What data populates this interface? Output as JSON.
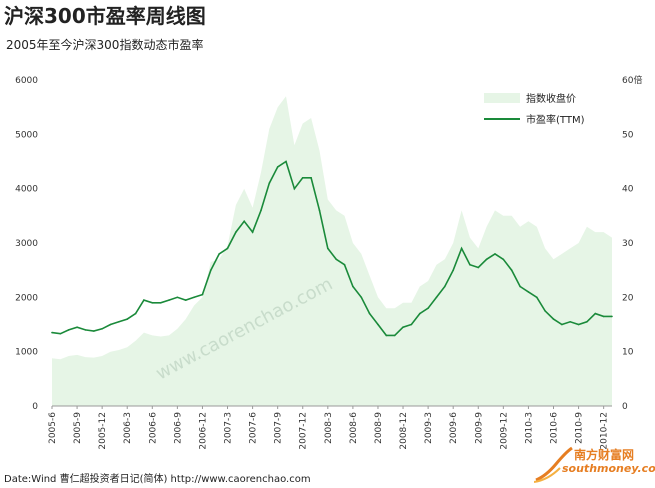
{
  "header": {
    "title": "沪深300市盈率周线图",
    "subtitle": "2005年至今沪深300指数动态市盈率"
  },
  "footer": {
    "source": "Date:Wind  曹仁超投资者日记(简体) http://www.caorenchao.com"
  },
  "watermark": "www.caorenchao.com",
  "logo": {
    "cn": "南方财富网",
    "url": "southmoney.com"
  },
  "colors": {
    "area_fill": "#e6f5e6",
    "pe_line": "#1a8a3a",
    "logo": "#e67e22"
  },
  "chart_data": {
    "type": "area",
    "x": [
      "2005-6",
      "2005-7",
      "2005-8",
      "2005-9",
      "2005-10",
      "2005-11",
      "2005-12",
      "2006-1",
      "2006-2",
      "2006-3",
      "2006-4",
      "2006-5",
      "2006-6",
      "2006-7",
      "2006-8",
      "2006-9",
      "2006-10",
      "2006-11",
      "2006-12",
      "2007-1",
      "2007-2",
      "2007-3",
      "2007-4",
      "2007-5",
      "2007-6",
      "2007-7",
      "2007-8",
      "2007-9",
      "2007-10",
      "2007-11",
      "2007-12",
      "2008-1",
      "2008-2",
      "2008-3",
      "2008-4",
      "2008-5",
      "2008-6",
      "2008-7",
      "2008-8",
      "2008-9",
      "2008-10",
      "2008-11",
      "2008-12",
      "2009-1",
      "2009-2",
      "2009-3",
      "2009-4",
      "2009-5",
      "2009-6",
      "2009-7",
      "2009-8",
      "2009-9",
      "2009-10",
      "2009-11",
      "2009-12",
      "2010-1",
      "2010-2",
      "2010-3",
      "2010-4",
      "2010-5",
      "2010-6",
      "2010-7",
      "2010-8",
      "2010-9",
      "2010-10",
      "2010-11",
      "2010-12",
      "2011-1"
    ],
    "x_tick_labels": [
      "2005-6",
      "2005-9",
      "2005-12",
      "2006-3",
      "2006-6",
      "2006-9",
      "2006-12",
      "2007-3",
      "2007-6",
      "2007-9",
      "2007-12",
      "2008-3",
      "2008-6",
      "2008-9",
      "2008-12",
      "2009-3",
      "2009-6",
      "2009-9",
      "2009-12",
      "2010-3",
      "2010-6",
      "2010-9",
      "2010-12"
    ],
    "series": [
      {
        "name": "指数收盘价",
        "axis": "left",
        "values": [
          880,
          860,
          920,
          940,
          900,
          890,
          920,
          1000,
          1030,
          1080,
          1200,
          1350,
          1300,
          1280,
          1300,
          1420,
          1600,
          1850,
          2000,
          2650,
          2700,
          2950,
          3700,
          4000,
          3650,
          4300,
          5100,
          5500,
          5700,
          4800,
          5200,
          5300,
          4700,
          3800,
          3600,
          3500,
          3000,
          2800,
          2400,
          2000,
          1800,
          1800,
          1900,
          1900,
          2200,
          2300,
          2600,
          2700,
          3000,
          3600,
          3100,
          2900,
          3300,
          3600,
          3500,
          3500,
          3300,
          3400,
          3300,
          2900,
          2700,
          2800,
          2900,
          3000,
          3300,
          3200,
          3200,
          3100
        ]
      },
      {
        "name": "市盈率(TTM)",
        "axis": "right",
        "values": [
          13.5,
          13.3,
          14.0,
          14.5,
          14.0,
          13.8,
          14.2,
          15.0,
          15.5,
          16.0,
          17.0,
          19.5,
          19.0,
          19.0,
          19.5,
          20.0,
          19.5,
          20.0,
          20.5,
          25.0,
          28.0,
          29.0,
          32.0,
          34.0,
          32.0,
          36.0,
          41.0,
          44.0,
          45.0,
          40.0,
          42.0,
          42.0,
          36.0,
          29.0,
          27.0,
          26.0,
          22.0,
          20.0,
          17.0,
          15.0,
          13.0,
          13.0,
          14.5,
          15.0,
          17.0,
          18.0,
          20.0,
          22.0,
          25.0,
          29.0,
          26.0,
          25.5,
          27.0,
          28.0,
          27.0,
          25.0,
          22.0,
          21.0,
          20.0,
          17.5,
          16.0,
          15.0,
          15.5,
          15.0,
          15.5,
          17.0,
          16.5,
          16.5
        ]
      }
    ],
    "left_axis": {
      "ylim": [
        0,
        6000
      ],
      "ticks": [
        "0",
        "1000",
        "2000",
        "3000",
        "4000",
        "5000",
        "6000"
      ]
    },
    "right_axis": {
      "ylim": [
        0,
        60
      ],
      "ticks": [
        "0",
        "10",
        "20",
        "30",
        "40",
        "50",
        "60倍"
      ]
    },
    "legend": [
      "指数收盘价",
      "市盈率(TTM)"
    ],
    "legend_position": "top-right",
    "grid": false
  }
}
